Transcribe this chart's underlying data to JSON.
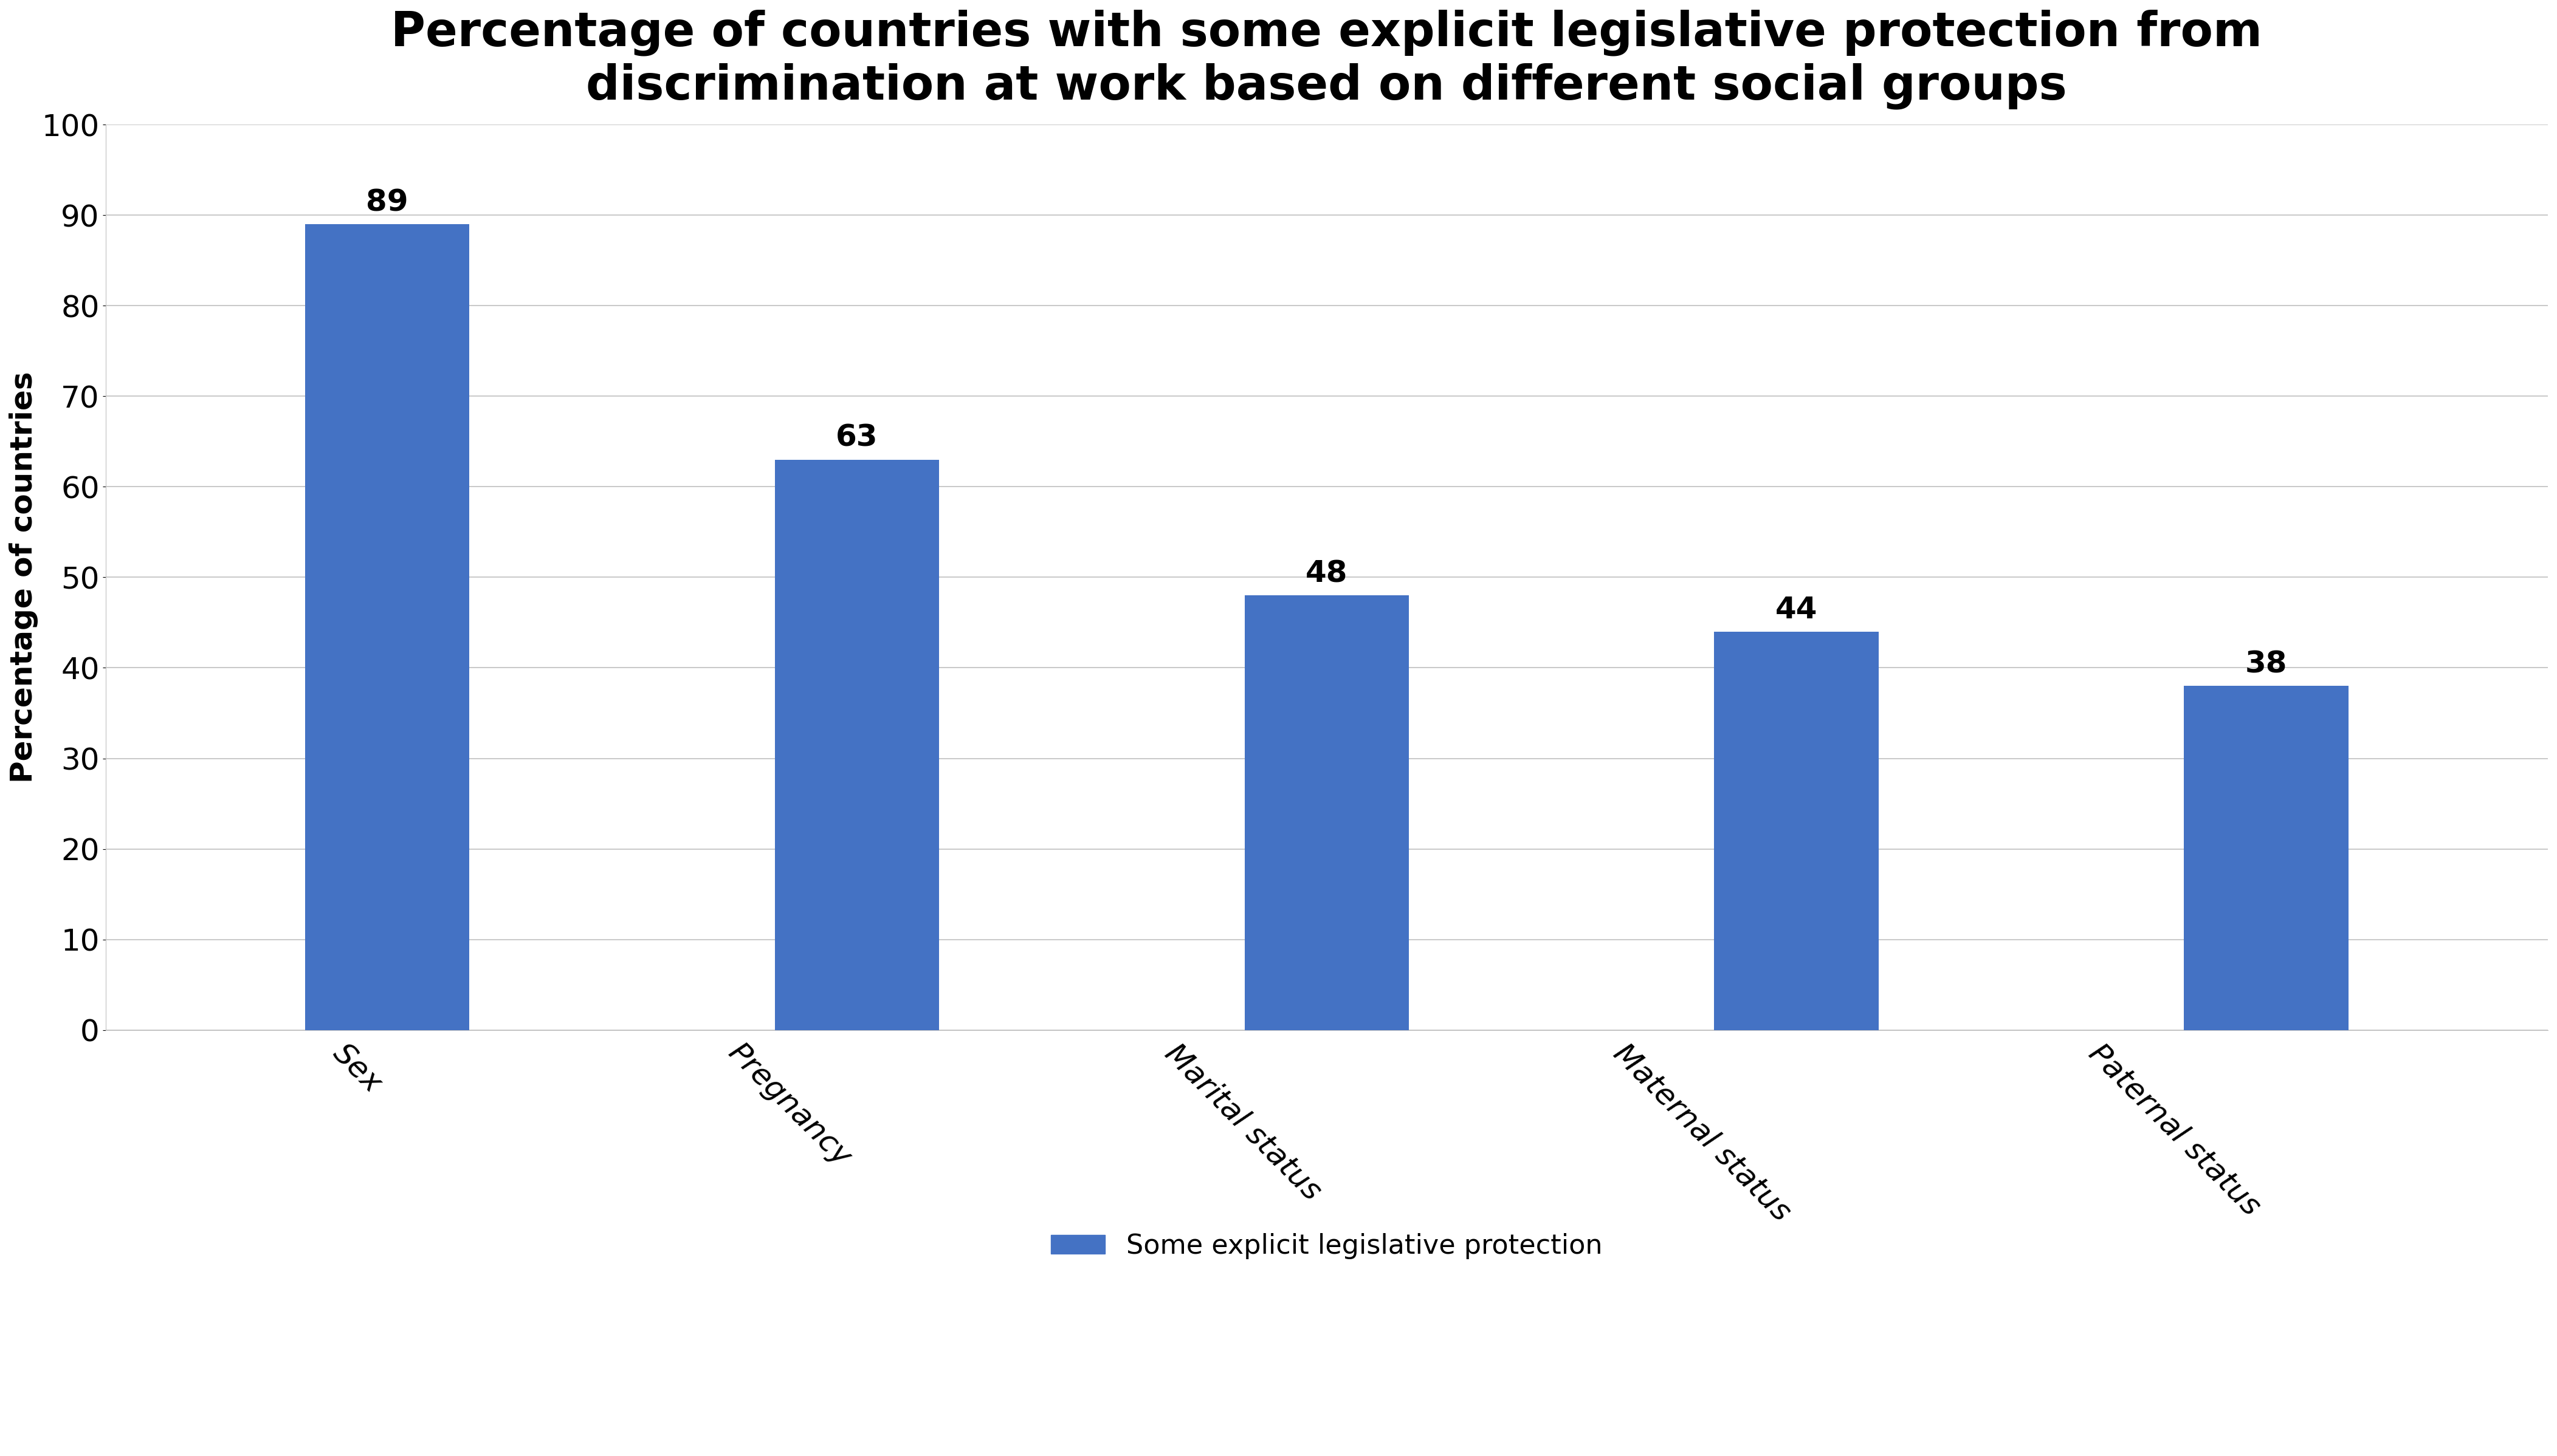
{
  "title": "Percentage of countries with some explicit legislative protection from\ndiscrimination at work based on different social groups",
  "categories": [
    "Sex",
    "Pregnancy",
    "Marital status",
    "Maternal status",
    "Paternal status"
  ],
  "values": [
    89,
    63,
    48,
    44,
    38
  ],
  "bar_color": "#4472C4",
  "ylabel": "Percentage of countries",
  "ylim": [
    0,
    100
  ],
  "yticks": [
    0,
    10,
    20,
    30,
    40,
    50,
    60,
    70,
    80,
    90,
    100
  ],
  "legend_label": "Some explicit legislative protection",
  "title_fontsize": 56,
  "label_fontsize": 36,
  "tick_fontsize": 36,
  "bar_label_fontsize": 36,
  "legend_fontsize": 32,
  "background_color": "#ffffff",
  "grid_color": "#c0c0c0",
  "bar_width": 0.35
}
